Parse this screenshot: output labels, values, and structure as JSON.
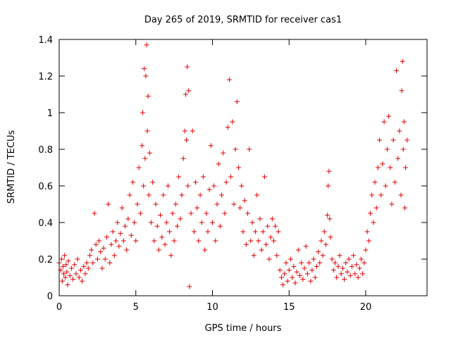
{
  "chart_data": {
    "type": "scatter",
    "title": "Day 265 of 2019, SRMTID for receiver cas1",
    "xlabel": "GPS time / hours",
    "ylabel": "SRMTID / TECUs",
    "xlim": [
      0,
      24
    ],
    "ylim": [
      0,
      1.4
    ],
    "xticks": [
      0,
      5,
      10,
      15,
      20
    ],
    "xtick_labels": [
      "0",
      "5",
      "10",
      "15",
      "20"
    ],
    "yticks": [
      0,
      0.2,
      0.4,
      0.6,
      0.8,
      1.0,
      1.2,
      1.4
    ],
    "ytick_labels": [
      "0",
      "0.2",
      "0.4",
      "0.6",
      "0.8",
      "1",
      "1.2",
      "1.4"
    ],
    "marker": "+",
    "marker_color": "#e00000",
    "grid": false,
    "series": [
      {
        "name": "cas1 SRMTID",
        "points": [
          [
            0.0,
            0.18
          ],
          [
            0.1,
            0.14
          ],
          [
            0.15,
            0.2
          ],
          [
            0.2,
            0.08
          ],
          [
            0.25,
            0.16
          ],
          [
            0.3,
            0.12
          ],
          [
            0.35,
            0.22
          ],
          [
            0.4,
            0.1
          ],
          [
            0.45,
            0.17
          ],
          [
            0.5,
            0.13
          ],
          [
            0.55,
            0.06
          ],
          [
            0.6,
            0.19
          ],
          [
            0.7,
            0.11
          ],
          [
            0.8,
            0.15
          ],
          [
            0.9,
            0.09
          ],
          [
            1.0,
            0.17
          ],
          [
            1.1,
            0.12
          ],
          [
            1.2,
            0.2
          ],
          [
            1.3,
            0.1
          ],
          [
            1.4,
            0.14
          ],
          [
            1.5,
            0.08
          ],
          [
            1.6,
            0.16
          ],
          [
            1.7,
            0.12
          ],
          [
            1.8,
            0.18
          ],
          [
            1.9,
            0.15
          ],
          [
            2.0,
            0.22
          ],
          [
            2.1,
            0.25
          ],
          [
            2.2,
            0.18
          ],
          [
            2.3,
            0.45
          ],
          [
            2.4,
            0.28
          ],
          [
            2.5,
            0.2
          ],
          [
            2.6,
            0.3
          ],
          [
            2.7,
            0.24
          ],
          [
            2.8,
            0.15
          ],
          [
            2.9,
            0.26
          ],
          [
            3.0,
            0.2
          ],
          [
            3.1,
            0.32
          ],
          [
            3.2,
            0.5
          ],
          [
            3.3,
            0.18
          ],
          [
            3.4,
            0.28
          ],
          [
            3.5,
            0.35
          ],
          [
            3.6,
            0.22
          ],
          [
            3.7,
            0.3
          ],
          [
            3.8,
            0.4
          ],
          [
            3.9,
            0.27
          ],
          [
            4.0,
            0.34
          ],
          [
            4.1,
            0.48
          ],
          [
            4.2,
            0.3
          ],
          [
            4.3,
            0.38
          ],
          [
            4.4,
            0.25
          ],
          [
            4.5,
            0.42
          ],
          [
            4.6,
            0.55
          ],
          [
            4.7,
            0.33
          ],
          [
            4.8,
            0.62
          ],
          [
            4.9,
            0.4
          ],
          [
            5.0,
            0.3
          ],
          [
            5.1,
            0.5
          ],
          [
            5.2,
            0.7
          ],
          [
            5.3,
            0.45
          ],
          [
            5.4,
            0.82
          ],
          [
            5.45,
            1.0
          ],
          [
            5.5,
            0.6
          ],
          [
            5.55,
            1.24
          ],
          [
            5.6,
            0.75
          ],
          [
            5.65,
            1.2
          ],
          [
            5.7,
            1.37
          ],
          [
            5.75,
            0.9
          ],
          [
            5.8,
            1.09
          ],
          [
            5.85,
            0.55
          ],
          [
            5.9,
            0.78
          ],
          [
            6.0,
            0.4
          ],
          [
            6.1,
            0.62
          ],
          [
            6.2,
            0.3
          ],
          [
            6.3,
            0.5
          ],
          [
            6.4,
            0.38
          ],
          [
            6.5,
            0.25
          ],
          [
            6.6,
            0.44
          ],
          [
            6.7,
            0.32
          ],
          [
            6.8,
            0.55
          ],
          [
            6.9,
            0.28
          ],
          [
            7.0,
            0.4
          ],
          [
            7.1,
            0.6
          ],
          [
            7.2,
            0.35
          ],
          [
            7.3,
            0.22
          ],
          [
            7.4,
            0.45
          ],
          [
            7.5,
            0.3
          ],
          [
            7.6,
            0.5
          ],
          [
            7.7,
            0.38
          ],
          [
            7.8,
            0.65
          ],
          [
            7.9,
            0.42
          ],
          [
            8.0,
            0.55
          ],
          [
            8.1,
            0.75
          ],
          [
            8.2,
            0.9
          ],
          [
            8.25,
            1.1
          ],
          [
            8.3,
            0.85
          ],
          [
            8.35,
            1.25
          ],
          [
            8.4,
            0.6
          ],
          [
            8.45,
            1.12
          ],
          [
            8.5,
            0.05
          ],
          [
            8.6,
            0.45
          ],
          [
            8.7,
            0.9
          ],
          [
            8.8,
            0.35
          ],
          [
            8.9,
            0.62
          ],
          [
            9.0,
            0.48
          ],
          [
            9.1,
            0.3
          ],
          [
            9.2,
            0.55
          ],
          [
            9.3,
            0.4
          ],
          [
            9.4,
            0.65
          ],
          [
            9.5,
            0.25
          ],
          [
            9.6,
            0.45
          ],
          [
            9.7,
            0.35
          ],
          [
            9.8,
            0.58
          ],
          [
            9.9,
            0.82
          ],
          [
            10.0,
            0.4
          ],
          [
            10.1,
            0.6
          ],
          [
            10.2,
            0.3
          ],
          [
            10.3,
            0.5
          ],
          [
            10.4,
            0.72
          ],
          [
            10.5,
            0.38
          ],
          [
            10.6,
            0.55
          ],
          [
            10.7,
            0.78
          ],
          [
            10.8,
            0.45
          ],
          [
            10.9,
            0.62
          ],
          [
            11.0,
            0.92
          ],
          [
            11.1,
            1.18
          ],
          [
            11.2,
            0.65
          ],
          [
            11.3,
            0.95
          ],
          [
            11.4,
            0.5
          ],
          [
            11.5,
            0.8
          ],
          [
            11.6,
            1.06
          ],
          [
            11.7,
            0.7
          ],
          [
            11.8,
            0.48
          ],
          [
            11.9,
            0.6
          ],
          [
            12.0,
            0.35
          ],
          [
            12.1,
            0.52
          ],
          [
            12.2,
            0.28
          ],
          [
            12.3,
            0.45
          ],
          [
            12.4,
            0.8
          ],
          [
            12.5,
            0.3
          ],
          [
            12.6,
            0.4
          ],
          [
            12.7,
            0.22
          ],
          [
            12.8,
            0.35
          ],
          [
            12.9,
            0.55
          ],
          [
            13.0,
            0.3
          ],
          [
            13.1,
            0.42
          ],
          [
            13.2,
            0.25
          ],
          [
            13.3,
            0.35
          ],
          [
            13.4,
            0.65
          ],
          [
            13.5,
            0.28
          ],
          [
            13.6,
            0.38
          ],
          [
            13.7,
            0.2
          ],
          [
            13.8,
            0.32
          ],
          [
            13.9,
            0.42
          ],
          [
            14.0,
            0.3
          ],
          [
            14.1,
            0.38
          ],
          [
            14.2,
            0.22
          ],
          [
            14.3,
            0.35
          ],
          [
            14.4,
            0.14
          ],
          [
            14.5,
            0.1
          ],
          [
            14.6,
            0.06
          ],
          [
            14.7,
            0.12
          ],
          [
            14.8,
            0.18
          ],
          [
            14.9,
            0.08
          ],
          [
            15.0,
            0.14
          ],
          [
            15.1,
            0.2
          ],
          [
            15.2,
            0.1
          ],
          [
            15.3,
            0.16
          ],
          [
            15.4,
            0.07
          ],
          [
            15.5,
            0.13
          ],
          [
            15.6,
            0.25
          ],
          [
            15.7,
            0.11
          ],
          [
            15.8,
            0.18
          ],
          [
            15.9,
            0.09
          ],
          [
            16.0,
            0.15
          ],
          [
            16.1,
            0.27
          ],
          [
            16.2,
            0.12
          ],
          [
            16.3,
            0.18
          ],
          [
            16.4,
            0.08
          ],
          [
            16.5,
            0.14
          ],
          [
            16.6,
            0.2
          ],
          [
            16.7,
            0.1
          ],
          [
            16.8,
            0.16
          ],
          [
            16.9,
            0.24
          ],
          [
            17.0,
            0.18
          ],
          [
            17.1,
            0.3
          ],
          [
            17.2,
            0.22
          ],
          [
            17.3,
            0.35
          ],
          [
            17.4,
            0.28
          ],
          [
            17.5,
            0.44
          ],
          [
            17.55,
            0.6
          ],
          [
            17.6,
            0.68
          ],
          [
            17.65,
            0.42
          ],
          [
            17.7,
            0.32
          ],
          [
            17.8,
            0.2
          ],
          [
            17.9,
            0.14
          ],
          [
            18.0,
            0.18
          ],
          [
            18.1,
            0.1
          ],
          [
            18.2,
            0.16
          ],
          [
            18.3,
            0.22
          ],
          [
            18.4,
            0.12
          ],
          [
            18.5,
            0.15
          ],
          [
            18.6,
            0.09
          ],
          [
            18.7,
            0.18
          ],
          [
            18.8,
            0.13
          ],
          [
            18.9,
            0.2
          ],
          [
            19.0,
            0.11
          ],
          [
            19.1,
            0.16
          ],
          [
            19.2,
            0.22
          ],
          [
            19.3,
            0.12
          ],
          [
            19.4,
            0.17
          ],
          [
            19.5,
            0.1
          ],
          [
            19.6,
            0.15
          ],
          [
            19.7,
            0.2
          ],
          [
            19.8,
            0.12
          ],
          [
            19.9,
            0.18
          ],
          [
            20.0,
            0.25
          ],
          [
            20.1,
            0.35
          ],
          [
            20.2,
            0.3
          ],
          [
            20.3,
            0.45
          ],
          [
            20.4,
            0.55
          ],
          [
            20.5,
            0.4
          ],
          [
            20.6,
            0.62
          ],
          [
            20.7,
            0.48
          ],
          [
            20.8,
            0.7
          ],
          [
            20.9,
            0.85
          ],
          [
            21.0,
            0.55
          ],
          [
            21.1,
            0.72
          ],
          [
            21.2,
            0.95
          ],
          [
            21.3,
            0.6
          ],
          [
            21.4,
            0.8
          ],
          [
            21.5,
            0.98
          ],
          [
            21.6,
            0.7
          ],
          [
            21.7,
            0.5
          ],
          [
            21.8,
            0.85
          ],
          [
            21.9,
            0.62
          ],
          [
            22.0,
            1.23
          ],
          [
            22.1,
            0.75
          ],
          [
            22.2,
            0.9
          ],
          [
            22.3,
            0.55
          ],
          [
            22.35,
            1.12
          ],
          [
            22.4,
            1.28
          ],
          [
            22.45,
            0.8
          ],
          [
            22.5,
            0.95
          ],
          [
            22.55,
            0.48
          ],
          [
            22.6,
            0.7
          ],
          [
            22.7,
            0.85
          ]
        ]
      }
    ]
  }
}
